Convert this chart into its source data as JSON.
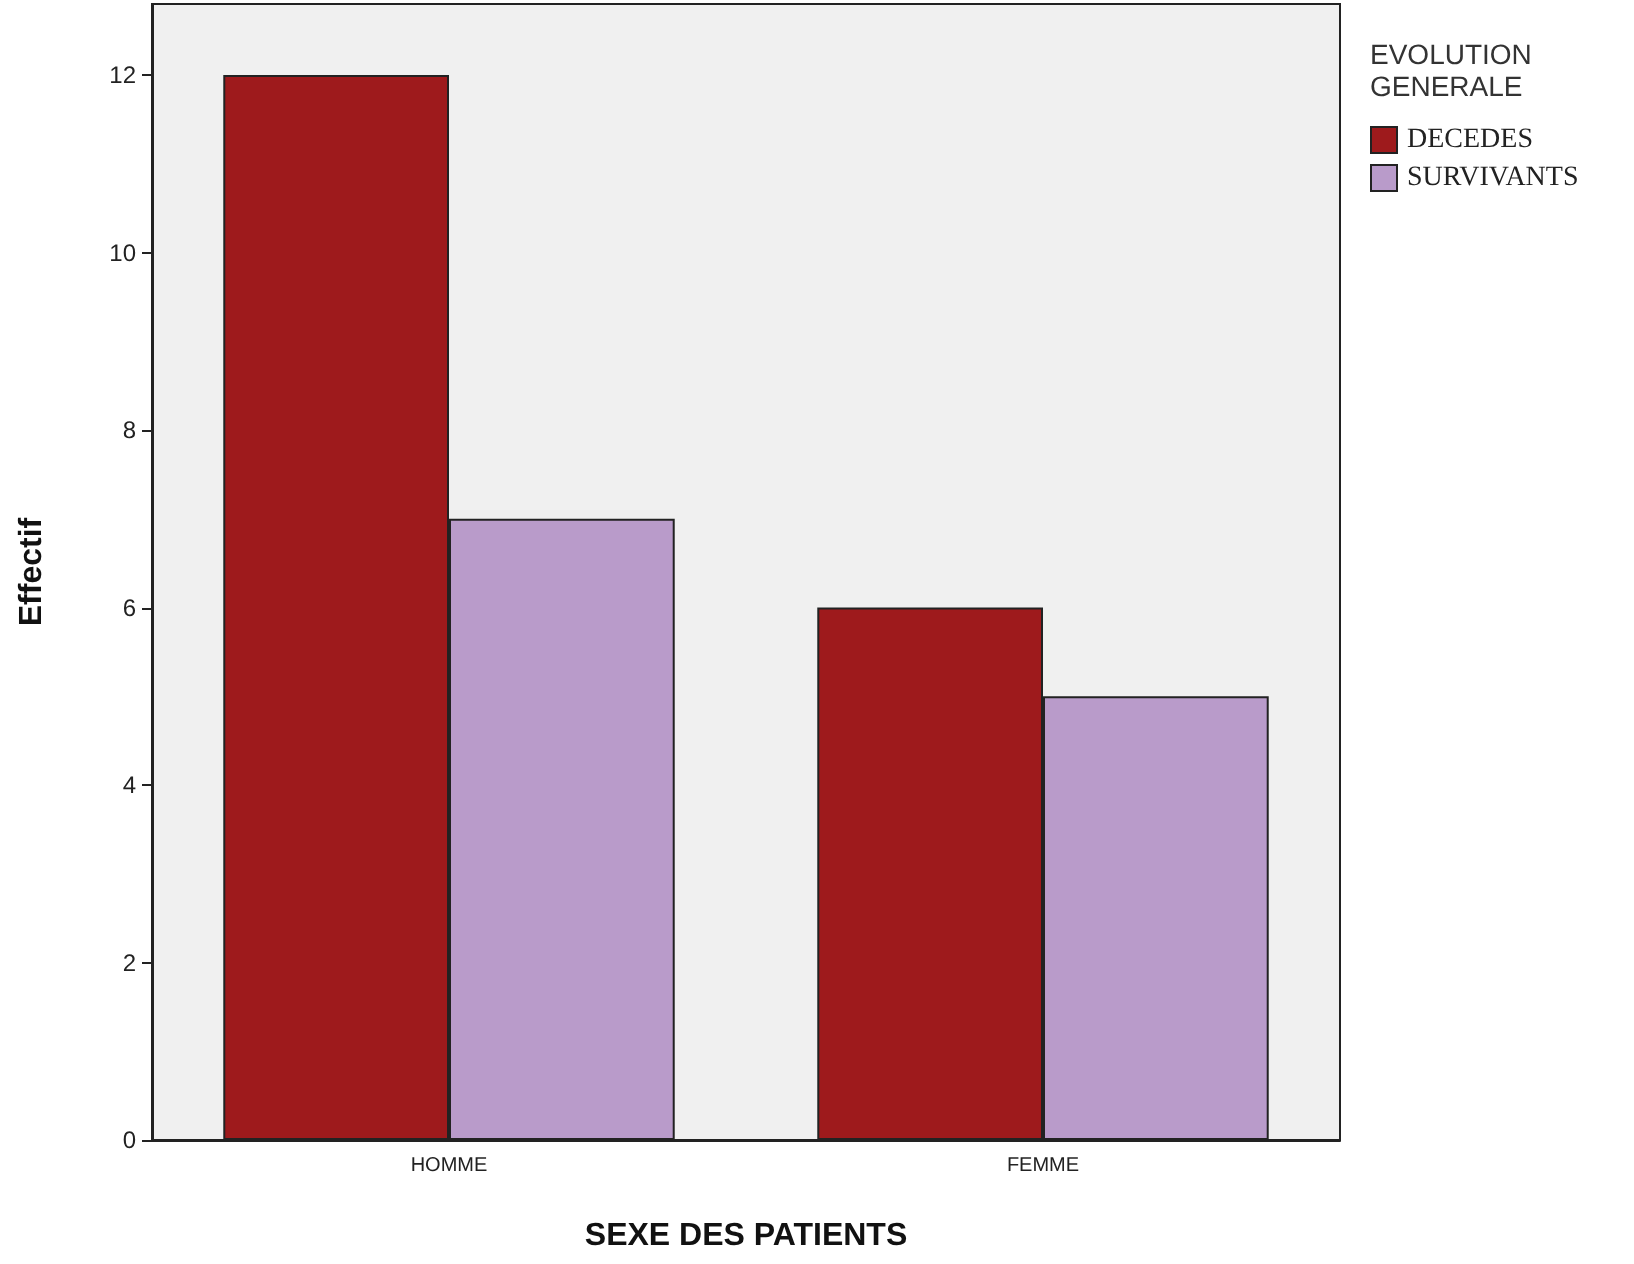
{
  "chart_data": {
    "type": "bar",
    "xlabel": "SEXE DES PATIENTS",
    "ylabel": "Effectif",
    "legend_title": "EVOLUTION GENERALE",
    "categories": [
      "HOMME",
      "FEMME"
    ],
    "series": [
      {
        "name": "DECEDES",
        "color": "#9e1a1c",
        "values": [
          12,
          6
        ]
      },
      {
        "name": "SURVIVANTS",
        "color": "#b99bca",
        "values": [
          7,
          5
        ]
      }
    ],
    "ylim": [
      0,
      12.8
    ],
    "yticks": [
      0,
      2,
      4,
      6,
      8,
      10,
      12
    ],
    "grid": false,
    "legend": "top right"
  }
}
